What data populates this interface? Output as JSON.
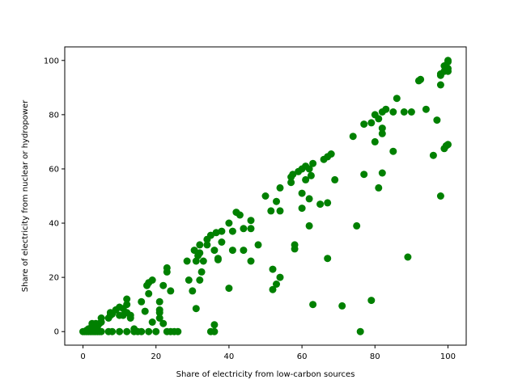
{
  "chart_data": {
    "type": "scatter",
    "xlabel": "Share of electricity from low-carbon sources",
    "ylabel": "Share of electricity from nuclear or hydropower",
    "xlim": [
      -5,
      105
    ],
    "ylim": [
      -5,
      105
    ],
    "xticks": [
      0,
      20,
      40,
      60,
      80,
      100
    ],
    "yticks": [
      0,
      20,
      40,
      60,
      80,
      100
    ],
    "grid": false,
    "marker_color": "#008000",
    "series": [
      {
        "points": [
          [
            0,
            0
          ],
          [
            0.5,
            0
          ],
          [
            1,
            0
          ],
          [
            1.5,
            0
          ],
          [
            2,
            0
          ],
          [
            2.5,
            0
          ],
          [
            3,
            0
          ],
          [
            3.5,
            0
          ],
          [
            4,
            0
          ],
          [
            4.5,
            0
          ],
          [
            5,
            0
          ],
          [
            1,
            0.5
          ],
          [
            2,
            0.5
          ],
          [
            3,
            1
          ],
          [
            1.5,
            1
          ],
          [
            2.5,
            2
          ],
          [
            3,
            1.5
          ],
          [
            4,
            2
          ],
          [
            3.5,
            3
          ],
          [
            2.5,
            3
          ],
          [
            4.5,
            3
          ],
          [
            5,
            3.5
          ],
          [
            5,
            5
          ],
          [
            7,
            5
          ],
          [
            7.5,
            6
          ],
          [
            8,
            6.5
          ],
          [
            7.5,
            7
          ],
          [
            9,
            8
          ],
          [
            10,
            9
          ],
          [
            11,
            8.5
          ],
          [
            12,
            10
          ],
          [
            12,
            12
          ],
          [
            13,
            6
          ],
          [
            13,
            5
          ],
          [
            10,
            6
          ],
          [
            11,
            6
          ],
          [
            12,
            7
          ],
          [
            8,
            0
          ],
          [
            7,
            0
          ],
          [
            10,
            0
          ],
          [
            12,
            0
          ],
          [
            14,
            0
          ],
          [
            14,
            1
          ],
          [
            15,
            0
          ],
          [
            16,
            0
          ],
          [
            16,
            11
          ],
          [
            17,
            7.5
          ],
          [
            17.5,
            17
          ],
          [
            18,
            14
          ],
          [
            18,
            18
          ],
          [
            19,
            19
          ],
          [
            19,
            3.5
          ],
          [
            18,
            0
          ],
          [
            20,
            0
          ],
          [
            21,
            5
          ],
          [
            21,
            7
          ],
          [
            21,
            8
          ],
          [
            21,
            11
          ],
          [
            22,
            17
          ],
          [
            22,
            3
          ],
          [
            23,
            22
          ],
          [
            23,
            23.5
          ],
          [
            23,
            0
          ],
          [
            24,
            0
          ],
          [
            24,
            15
          ],
          [
            25,
            0
          ],
          [
            26,
            0
          ],
          [
            28.5,
            26
          ],
          [
            29,
            19
          ],
          [
            30,
            15
          ],
          [
            30.5,
            30
          ],
          [
            31,
            26
          ],
          [
            31.5,
            28
          ],
          [
            31,
            8.5
          ],
          [
            32,
            29
          ],
          [
            32,
            32
          ],
          [
            32.5,
            22
          ],
          [
            32,
            19
          ],
          [
            33,
            26
          ],
          [
            34,
            34
          ],
          [
            34,
            32
          ],
          [
            35,
            35.5
          ],
          [
            35,
            0
          ],
          [
            36,
            0
          ],
          [
            36,
            2.5
          ],
          [
            36,
            30
          ],
          [
            36.5,
            36.5
          ],
          [
            37,
            27
          ],
          [
            37,
            26.5
          ],
          [
            38,
            37
          ],
          [
            38,
            33
          ],
          [
            40,
            40
          ],
          [
            40,
            16
          ],
          [
            41,
            37
          ],
          [
            41,
            30
          ],
          [
            42,
            44
          ],
          [
            43,
            43
          ],
          [
            44,
            30
          ],
          [
            44,
            38
          ],
          [
            46,
            41
          ],
          [
            46,
            38
          ],
          [
            46,
            26
          ],
          [
            48,
            32
          ],
          [
            50,
            50
          ],
          [
            51.5,
            44.5
          ],
          [
            52,
            23
          ],
          [
            52,
            15.5
          ],
          [
            53,
            48
          ],
          [
            53,
            17.5
          ],
          [
            54,
            53
          ],
          [
            54,
            44.5
          ],
          [
            54,
            20
          ],
          [
            57,
            57
          ],
          [
            57,
            55
          ],
          [
            57.5,
            58
          ],
          [
            58,
            30.5
          ],
          [
            58,
            32
          ],
          [
            59,
            59
          ],
          [
            60,
            45.5
          ],
          [
            60,
            60
          ],
          [
            60,
            51
          ],
          [
            61,
            61
          ],
          [
            61,
            56
          ],
          [
            62,
            39
          ],
          [
            62,
            60
          ],
          [
            62,
            49
          ],
          [
            62.5,
            57.5
          ],
          [
            63,
            62
          ],
          [
            63,
            10
          ],
          [
            65,
            47
          ],
          [
            66,
            63.5
          ],
          [
            67,
            64.5
          ],
          [
            67,
            47.5
          ],
          [
            67,
            27
          ],
          [
            68,
            65.5
          ],
          [
            69,
            56
          ],
          [
            71,
            9.5
          ],
          [
            74,
            72
          ],
          [
            75,
            39
          ],
          [
            76,
            0
          ],
          [
            77,
            76.5
          ],
          [
            77,
            58
          ],
          [
            79,
            77
          ],
          [
            79,
            11.5
          ],
          [
            80,
            70
          ],
          [
            80,
            80
          ],
          [
            81,
            53
          ],
          [
            81,
            78.5
          ],
          [
            82,
            81
          ],
          [
            82,
            75
          ],
          [
            82,
            73
          ],
          [
            82,
            58.5
          ],
          [
            83,
            82
          ],
          [
            85,
            81
          ],
          [
            85,
            66.5
          ],
          [
            86,
            86
          ],
          [
            88,
            81
          ],
          [
            89,
            27.5
          ],
          [
            90,
            81
          ],
          [
            92,
            92.5
          ],
          [
            92.5,
            93
          ],
          [
            94,
            82
          ],
          [
            96,
            65
          ],
          [
            97,
            78
          ],
          [
            98,
            94.5
          ],
          [
            98,
            95
          ],
          [
            98,
            91
          ],
          [
            98,
            50
          ],
          [
            99,
            67.5
          ],
          [
            99,
            96
          ],
          [
            99,
            98
          ],
          [
            99.5,
            68.5
          ],
          [
            100,
            100
          ],
          [
            100,
            99.5
          ],
          [
            100,
            97
          ],
          [
            100,
            96
          ],
          [
            100,
            69
          ]
        ]
      }
    ]
  }
}
